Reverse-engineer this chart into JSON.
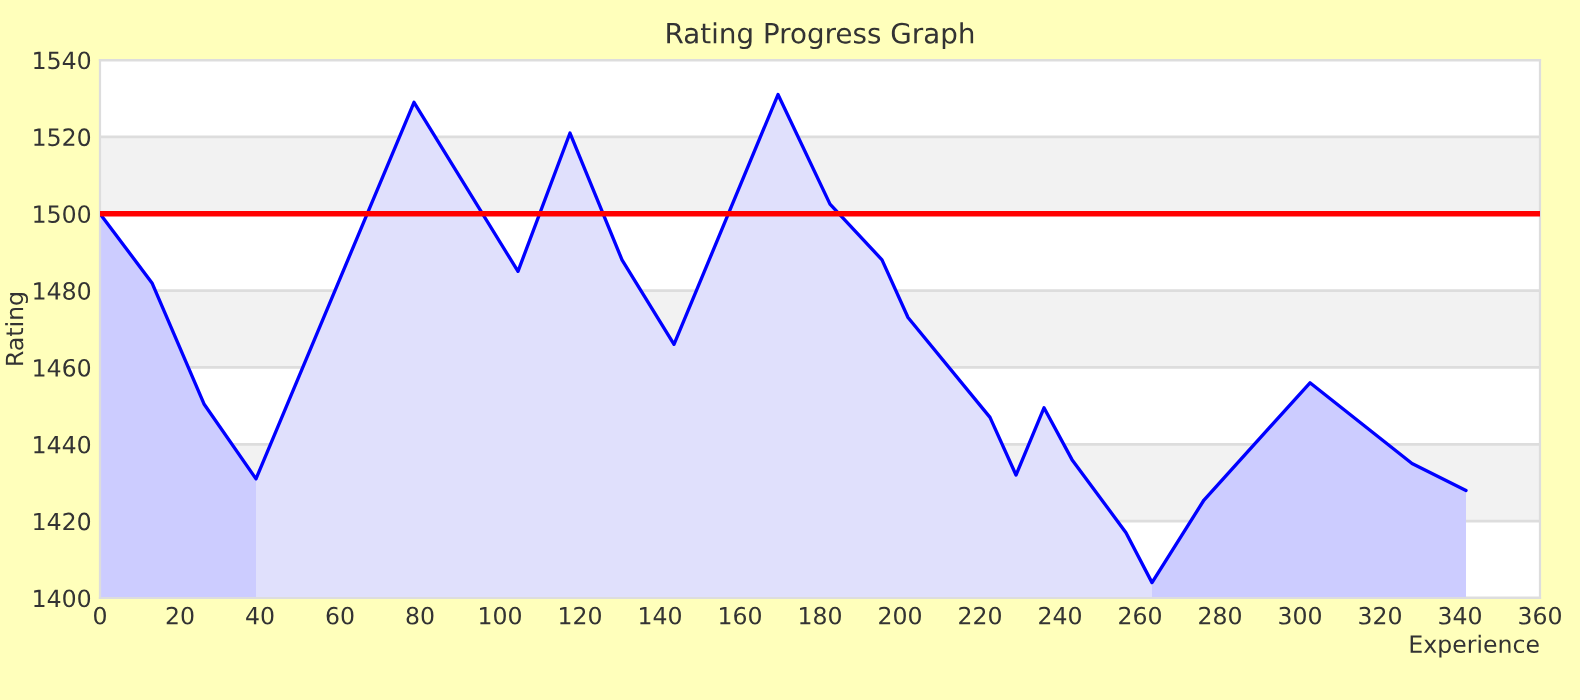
{
  "chart_data": {
    "type": "line",
    "title": "Rating Progress Graph",
    "xlabel": "Experience",
    "ylabel": "Rating",
    "xlim": [
      0,
      360
    ],
    "xticks": [
      0,
      20,
      40,
      60,
      80,
      100,
      120,
      140,
      160,
      180,
      200,
      220,
      240,
      260,
      280,
      300,
      320,
      340,
      360
    ],
    "ylim": [
      1400,
      1540
    ],
    "yticks": [
      1400,
      1420,
      1440,
      1460,
      1480,
      1500,
      1520,
      1540
    ],
    "grid": "y",
    "legend": false,
    "bands": [
      {
        "axis": "y",
        "from": 1420,
        "to": 1440,
        "color": "#f2f2f2"
      },
      {
        "axis": "y",
        "from": 1460,
        "to": 1480,
        "color": "#f2f2f2"
      },
      {
        "axis": "y",
        "from": 1500,
        "to": 1520,
        "color": "#f2f2f2"
      }
    ],
    "ref_lines": [
      {
        "axis": "y",
        "value": 1500,
        "color": "#ff0000"
      }
    ],
    "series": [
      {
        "type": "area",
        "color": "#ccccff",
        "x": [
          0,
          13,
          26,
          39
        ],
        "values": [
          1500,
          1482,
          1450.5,
          1431
        ]
      },
      {
        "type": "area",
        "color": "#e0e0fc",
        "x": [
          39,
          78.5,
          104.5,
          117.5,
          130.5,
          143.5,
          169.5,
          182.5,
          195.5,
          202,
          222.5,
          229,
          236,
          243,
          256.5,
          263
        ],
        "values": [
          1431,
          1529,
          1485,
          1521,
          1488,
          1466,
          1531,
          1502.5,
          1488,
          1473,
          1447,
          1432,
          1449.5,
          1436,
          1417,
          1404
        ]
      },
      {
        "type": "area",
        "color": "#ccccff",
        "x": [
          263,
          276,
          302.5,
          328,
          341.5
        ],
        "values": [
          1404,
          1425.5,
          1456,
          1435,
          1428
        ]
      },
      {
        "color": "#0000ff",
        "x": [
          0,
          13,
          26,
          39,
          78.5,
          104.5,
          117.5,
          130.5,
          143.5,
          169.5,
          182.5,
          195.5,
          202,
          222.5,
          229,
          236,
          243,
          256.5,
          263,
          276,
          302.5,
          328,
          341.5
        ],
        "values": [
          1500,
          1482,
          1450.5,
          1431,
          1529,
          1485,
          1521,
          1488,
          1466,
          1531,
          1502.5,
          1488,
          1473,
          1447,
          1432,
          1449.5,
          1436,
          1417,
          1404,
          1425.5,
          1456,
          1435,
          1428
        ]
      }
    ]
  }
}
